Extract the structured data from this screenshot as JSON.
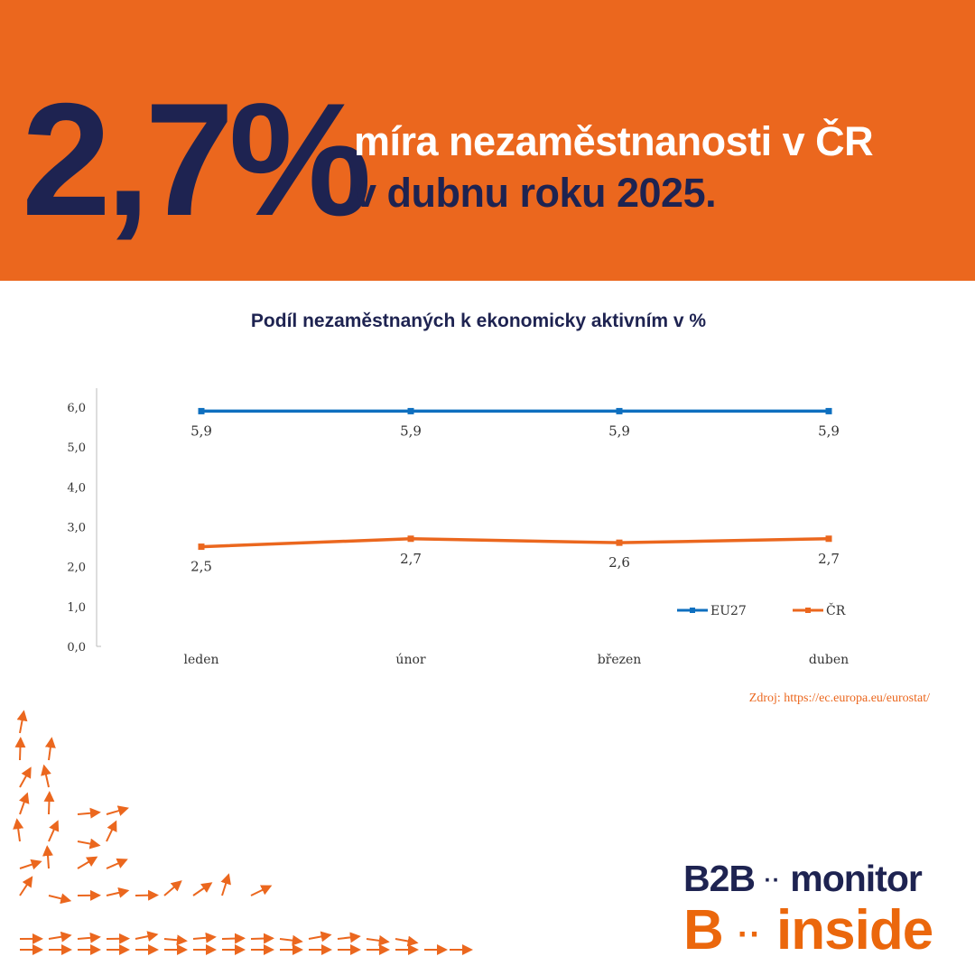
{
  "header": {
    "big_value": "2,7%",
    "line1": "míra nezaměstnanosti v ČR",
    "line2": "v dubnu roku 2025."
  },
  "chart_data": {
    "type": "line",
    "title": "Podíl nezaměstnaných k ekonomicky aktivním v %",
    "categories": [
      "leden",
      "únor",
      "březen",
      "duben"
    ],
    "series": [
      {
        "name": "EU27",
        "values": [
          5.9,
          5.9,
          5.9,
          5.9
        ],
        "labels": [
          "5,9",
          "5,9",
          "5,9",
          "5,9"
        ],
        "color": "#0E6FBF"
      },
      {
        "name": "ČR",
        "values": [
          2.5,
          2.7,
          2.6,
          2.7
        ],
        "labels": [
          "2,5",
          "2,7",
          "2,6",
          "2,7"
        ],
        "color": "#EB671E"
      }
    ],
    "yticks": [
      "0,0",
      "1,0",
      "2,0",
      "3,0",
      "4,0",
      "5,0",
      "6,0"
    ],
    "ylim": [
      0,
      6
    ],
    "legend": "bottom-right",
    "grid": false
  },
  "source": "Zdroj: https://ec.europa.eu/eurostat/",
  "logo": {
    "line1_a": "B2B",
    "line1_dots": "··",
    "line1_b": "monitor",
    "line2_a": "B",
    "line2_dots": "··",
    "line2_b": "inside"
  },
  "colors": {
    "orange": "#EB671E",
    "navy": "#1E2351",
    "blue": "#0E6FBF"
  }
}
